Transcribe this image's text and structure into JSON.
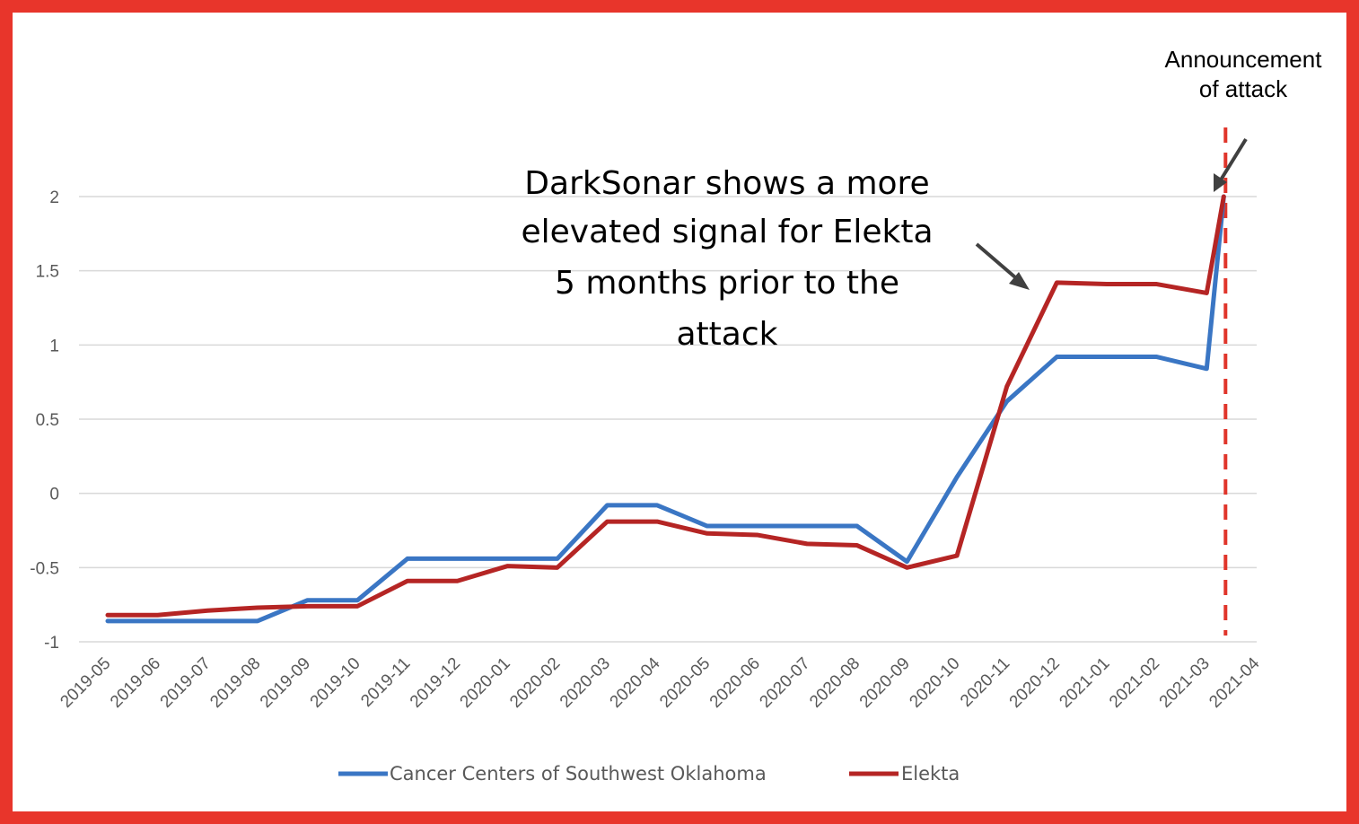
{
  "chart_data": {
    "type": "line",
    "x": [
      "2019-05",
      "2019-06",
      "2019-07",
      "2019-08",
      "2019-09",
      "2019-10",
      "2019-11",
      "2019-12",
      "2020-01",
      "2020-02",
      "2020-03",
      "2020-04",
      "2020-05",
      "2020-06",
      "2020-07",
      "2020-08",
      "2020-09",
      "2020-10",
      "2020-11",
      "2020-12",
      "2021-01",
      "2021-02",
      "2021-03",
      "2021-04"
    ],
    "yticks": [
      "2",
      "1.5",
      "1",
      "0.5",
      "0",
      "-0.5",
      "-1"
    ],
    "ylim": [
      -1,
      2
    ],
    "grid": true,
    "legend_position": "bottom",
    "series": [
      {
        "name": "Cancer Centers of Southwest Oklahoma",
        "color": "#3a76c4",
        "values": [
          -0.86,
          -0.86,
          -0.86,
          -0.86,
          -0.72,
          -0.72,
          -0.44,
          -0.44,
          -0.44,
          -0.44,
          -0.08,
          -0.08,
          -0.22,
          -0.22,
          -0.22,
          -0.22,
          -0.46,
          0.11,
          0.62,
          0.92,
          0.92,
          0.92,
          0.84,
          2.0
        ]
      },
      {
        "name": "Elekta",
        "color": "#b52524",
        "values": [
          -0.82,
          -0.82,
          -0.79,
          -0.77,
          -0.76,
          -0.76,
          -0.59,
          -0.59,
          -0.49,
          -0.5,
          -0.19,
          -0.19,
          -0.27,
          -0.28,
          -0.34,
          -0.35,
          -0.5,
          -0.42,
          0.72,
          1.42,
          1.41,
          1.41,
          1.35,
          2.0
        ]
      }
    ],
    "annotations": {
      "main_lines": [
        "DarkSonar shows a more",
        "elevated signal for Elekta",
        "5 months prior to the",
        "attack"
      ],
      "event_lines": [
        "Announcement",
        "of attack"
      ],
      "event_x": "2021-03",
      "event_color": "#e0352b"
    }
  }
}
